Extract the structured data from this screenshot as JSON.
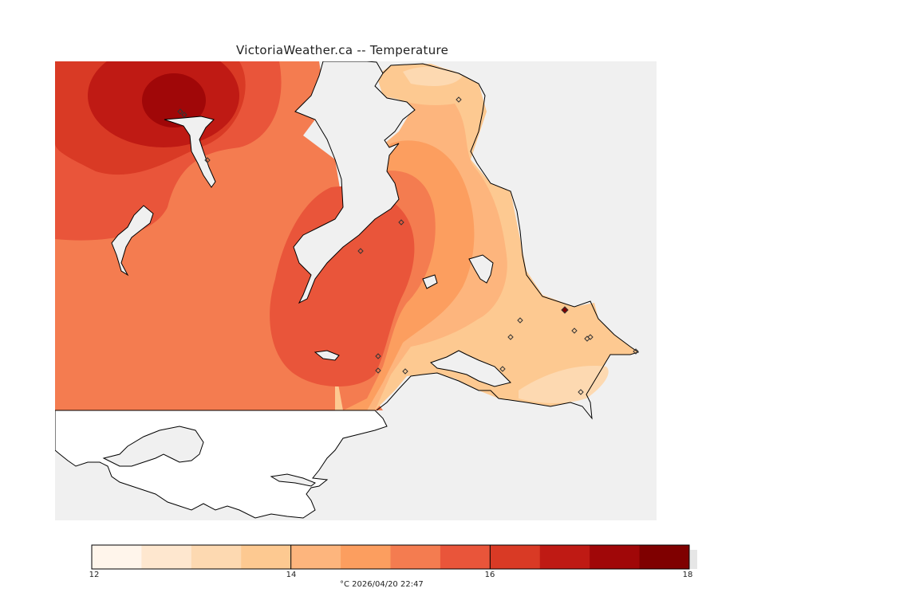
{
  "title": "VictoriaWeather.ca -- Temperature",
  "legend": {
    "caption": "°C  2026/04/20 22:47",
    "min": 12,
    "max": 18,
    "ticks": [
      "12",
      "14",
      "16",
      "18"
    ],
    "colors": [
      "#fff5eb",
      "#fee7cf",
      "#fdd9b1",
      "#fdc991",
      "#fdb57d",
      "#fc9e5f",
      "#f47c50",
      "#e9553a",
      "#d93a25",
      "#bf1a14",
      "#a00708",
      "#7f0000"
    ]
  },
  "stations_count": 19
}
